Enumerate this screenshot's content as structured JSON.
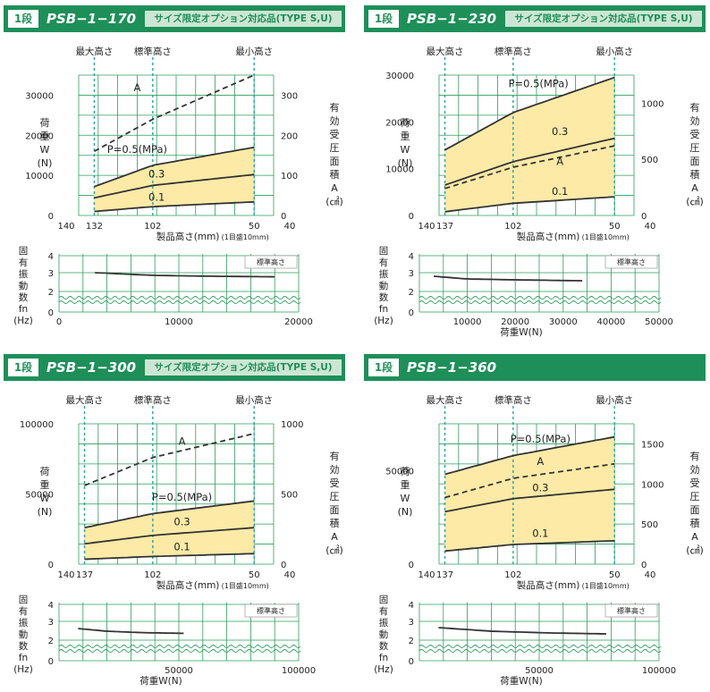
{
  "chart_data": [
    {
      "type": "line",
      "step": "1段",
      "model": "PSB−1−170",
      "option": "サイズ限定オプション対応品(TYPE S,U)",
      "heights": {
        "max": "最大高さ",
        "std": "標準高さ",
        "min": "最小高さ"
      },
      "xlabel": "製品高さ(mm)",
      "xnote": "(1目盛10mm)",
      "ylabel_left": [
        "荷",
        "重",
        "W",
        "(N)"
      ],
      "ylabel_right": [
        "有",
        "効",
        "受",
        "圧",
        "面",
        "積",
        "A",
        "(㎠)"
      ],
      "xlim": [
        140,
        40
      ],
      "x_ticks": [
        "140",
        "132",
        "102",
        "50",
        "40"
      ],
      "x_tick_values": [
        140,
        132,
        102,
        50,
        40
      ],
      "std_height": 102,
      "y_left_lim": [
        0,
        35000
      ],
      "y_left_ticks": [
        "0",
        "10000",
        "20000",
        "30000"
      ],
      "y_right_lim": [
        0,
        350
      ],
      "y_right_ticks": [
        "0",
        "100",
        "200",
        "300"
      ],
      "series": [
        {
          "name": "P=0.5(MPa)",
          "axis": "left",
          "dash": false,
          "x": [
            132,
            102,
            50
          ],
          "y": [
            7200,
            12500,
            17000
          ]
        },
        {
          "name": "0.3",
          "axis": "left",
          "dash": false,
          "x": [
            132,
            102,
            50
          ],
          "y": [
            4400,
            7500,
            10200
          ]
        },
        {
          "name": "0.1",
          "axis": "left",
          "dash": false,
          "x": [
            132,
            102,
            50
          ],
          "y": [
            1000,
            2200,
            3400
          ]
        },
        {
          "name": "A",
          "axis": "right",
          "dash": true,
          "x": [
            132,
            102,
            50
          ],
          "y": [
            160,
            240,
            350
          ]
        }
      ],
      "series_labels": [
        {
          "text": "A",
          "x": 110,
          "y": 31000
        },
        {
          "text": "P=0.5(MPa)",
          "x": 110,
          "y": 15200
        },
        {
          "text": "0.3",
          "x": 100,
          "y": 9000
        },
        {
          "text": "0.1",
          "x": 100,
          "y": 3200
        }
      ],
      "freq": {
        "ylabel": [
          "固",
          "有",
          "振",
          "動",
          "数",
          "fn",
          "(Hz)"
        ],
        "legend": "標準高さ",
        "xlabel": "",
        "xlim": [
          0,
          20000
        ],
        "x_ticks": [
          "0",
          "10000",
          "20000"
        ],
        "y_ticks": [
          "0",
          "2",
          "3",
          "4"
        ],
        "x": [
          3000,
          8000,
          13000,
          18000
        ],
        "y": [
          3.05,
          2.9,
          2.85,
          2.82
        ]
      }
    },
    {
      "type": "line",
      "step": "1段",
      "model": "PSB−1−230",
      "option": "サイズ限定オプション対応品(TYPE S,U)",
      "heights": {
        "max": "最大高さ",
        "std": "標準高さ",
        "min": "最小高さ"
      },
      "xlabel": "製品高さ(mm)",
      "xnote": "(1目盛10mm)",
      "ylabel_left": [
        "荷",
        "重",
        "W",
        "(N)"
      ],
      "ylabel_right": [
        "有",
        "効",
        "受",
        "圧",
        "面",
        "積",
        "A",
        "(㎠)"
      ],
      "xlim": [
        140,
        40
      ],
      "x_ticks": [
        "140",
        "137",
        "102",
        "50",
        "40"
      ],
      "x_tick_values": [
        140,
        137,
        102,
        50,
        40
      ],
      "std_height": 102,
      "y_left_lim": [
        0,
        30000
      ],
      "y_left_ticks": [
        "0",
        "10000",
        "20000",
        "30000"
      ],
      "y_right_lim": [
        0,
        1250
      ],
      "y_right_ticks": [
        "0",
        "500",
        "1000"
      ],
      "series": [
        {
          "name": "P=0.5(MPa)",
          "axis": "left",
          "dash": false,
          "x": [
            137,
            102,
            50
          ],
          "y": [
            14000,
            22000,
            29500
          ]
        },
        {
          "name": "0.3",
          "axis": "left",
          "dash": false,
          "x": [
            137,
            102,
            50
          ],
          "y": [
            6500,
            11500,
            16500
          ]
        },
        {
          "name": "0.1",
          "axis": "left",
          "dash": false,
          "x": [
            137,
            102,
            50
          ],
          "y": [
            800,
            2600,
            4000
          ]
        },
        {
          "name": "A",
          "axis": "right",
          "dash": true,
          "x": [
            137,
            102,
            50
          ],
          "y": [
            240,
            430,
            620
          ]
        }
      ],
      "series_labels": [
        {
          "text": "P=0.5(MPa)",
          "x": 89,
          "y": 27000
        },
        {
          "text": "0.3",
          "x": 78,
          "y": 16800
        },
        {
          "text": "A",
          "x": 78,
          "y": 10800
        },
        {
          "text": "0.1",
          "x": 78,
          "y": 4000
        }
      ],
      "freq": {
        "ylabel": [
          "固",
          "有",
          "振",
          "動",
          "数",
          "fn",
          "(Hz)"
        ],
        "legend": "標準高さ",
        "xlabel": "荷重W(N)",
        "xlim": [
          0,
          50000
        ],
        "x_ticks": [
          "10000",
          "20000",
          "30000",
          "40000",
          "50000"
        ],
        "y_ticks": [
          "0",
          "2",
          "3",
          "4"
        ],
        "x": [
          3000,
          10000,
          20000,
          34000
        ],
        "y": [
          2.85,
          2.7,
          2.65,
          2.6
        ]
      }
    },
    {
      "type": "line",
      "step": "1段",
      "model": "PSB−1−300",
      "option": "サイズ限定オプション対応品(TYPE S,U)",
      "heights": {
        "max": "最大高さ",
        "std": "標準高さ",
        "min": "最小高さ"
      },
      "xlabel": "製品高さ(mm)",
      "xnote": "(1目盛10mm)",
      "ylabel_left": [
        "荷",
        "重",
        "W",
        "(N)"
      ],
      "ylabel_right": [
        "有",
        "効",
        "受",
        "圧",
        "面",
        "積",
        "A",
        "(㎠)"
      ],
      "xlim": [
        140,
        40
      ],
      "x_ticks": [
        "140",
        "137",
        "102",
        "50",
        "40"
      ],
      "x_tick_values": [
        140,
        137,
        102,
        50,
        40
      ],
      "std_height": 102,
      "y_left_lim": [
        0,
        100000
      ],
      "y_left_ticks": [
        "0",
        "50000",
        "100000"
      ],
      "y_right_lim": [
        0,
        1000
      ],
      "y_right_ticks": [
        "0",
        "500",
        "1000"
      ],
      "series": [
        {
          "name": "P=0.5(MPa)",
          "axis": "left",
          "dash": false,
          "x": [
            137,
            102,
            50
          ],
          "y": [
            26000,
            36000,
            45000
          ]
        },
        {
          "name": "0.3",
          "axis": "left",
          "dash": false,
          "x": [
            137,
            102,
            50
          ],
          "y": [
            14500,
            20500,
            26000
          ]
        },
        {
          "name": "0.1",
          "axis": "left",
          "dash": false,
          "x": [
            137,
            102,
            50
          ],
          "y": [
            3500,
            5500,
            7500
          ]
        },
        {
          "name": "A",
          "axis": "right",
          "dash": true,
          "x": [
            137,
            102,
            50
          ],
          "y": [
            560,
            760,
            930
          ]
        }
      ],
      "series_labels": [
        {
          "text": "A",
          "x": 87,
          "y": 85000
        },
        {
          "text": "P=0.5(MPa)",
          "x": 87,
          "y": 44000
        },
        {
          "text": "0.3",
          "x": 87,
          "y": 26500
        },
        {
          "text": "0.1",
          "x": 87,
          "y": 8500
        }
      ],
      "freq": {
        "ylabel": [
          "固",
          "有",
          "振",
          "動",
          "数",
          "fn",
          "(Hz)"
        ],
        "legend": "標準高さ",
        "xlabel": "荷重W(N)",
        "xlim": [
          0,
          100000
        ],
        "x_ticks": [
          "50000",
          "100000"
        ],
        "y_ticks": [
          "0",
          "2",
          "3",
          "4"
        ],
        "x": [
          8000,
          20000,
          35000,
          52000
        ],
        "y": [
          2.65,
          2.5,
          2.42,
          2.38
        ]
      }
    },
    {
      "type": "line",
      "step": "1段",
      "model": "PSB−1−360",
      "option": "",
      "heights": {
        "max": "最大高さ",
        "std": "標準高さ",
        "min": "最小高さ"
      },
      "xlabel": "製品高さ(mm)",
      "xnote": "(1目盛10mm)",
      "ylabel_left": [
        "荷",
        "重",
        "W",
        "(N)"
      ],
      "ylabel_right": [
        "有",
        "効",
        "受",
        "圧",
        "面",
        "積",
        "A",
        "(㎠)"
      ],
      "xlim": [
        140,
        40
      ],
      "x_ticks": [
        "140",
        "137",
        "102",
        "50",
        "40"
      ],
      "x_tick_values": [
        140,
        137,
        102,
        50,
        40
      ],
      "std_height": 102,
      "y_left_lim": [
        0,
        75000
      ],
      "y_left_ticks": [
        "0",
        "50000"
      ],
      "y_right_lim": [
        0,
        1750
      ],
      "y_right_ticks": [
        "0",
        "500",
        "1000",
        "1500"
      ],
      "series": [
        {
          "name": "P=0.5(MPa)",
          "axis": "left",
          "dash": false,
          "x": [
            137,
            102,
            50
          ],
          "y": [
            48000,
            58000,
            68000
          ]
        },
        {
          "name": "0.3",
          "axis": "left",
          "dash": false,
          "x": [
            137,
            102,
            50
          ],
          "y": [
            28000,
            35000,
            40000
          ]
        },
        {
          "name": "0.1",
          "axis": "left",
          "dash": false,
          "x": [
            137,
            102,
            50
          ],
          "y": [
            7000,
            10500,
            12500
          ]
        },
        {
          "name": "A",
          "axis": "right",
          "dash": true,
          "x": [
            137,
            102,
            50
          ],
          "y": [
            830,
            1070,
            1250
          ]
        }
      ],
      "series_labels": [
        {
          "text": "P=0.5(MPa)",
          "x": 88,
          "y": 64000
        },
        {
          "text": "A",
          "x": 88,
          "y": 53000
        },
        {
          "text": "0.3",
          "x": 88,
          "y": 38000
        },
        {
          "text": "0.1",
          "x": 88,
          "y": 13500
        }
      ],
      "freq": {
        "ylabel": [
          "固",
          "有",
          "振",
          "動",
          "数",
          "fn",
          "(Hz)"
        ],
        "legend": "標準高さ",
        "xlabel": "荷重W(N)",
        "xlim": [
          0,
          100000
        ],
        "x_ticks": [
          "50000",
          "100000"
        ],
        "y_ticks": [
          "0",
          "2",
          "3",
          "4"
        ],
        "x": [
          8000,
          30000,
          55000,
          78000
        ],
        "y": [
          2.7,
          2.5,
          2.4,
          2.35
        ]
      }
    }
  ],
  "colors": {
    "header": "#1e8f59",
    "header_tag": "#cde6d3",
    "grid": "#2e9e5e",
    "fill": "#fdeaa7",
    "marker": "#2aa399",
    "line": "#333333"
  }
}
